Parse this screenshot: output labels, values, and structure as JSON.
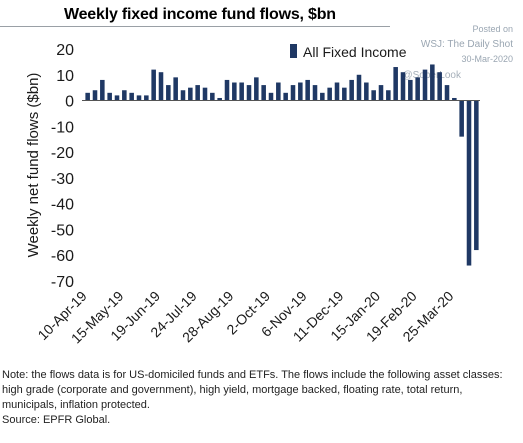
{
  "header": {
    "title": "Weekly fixed income fund flows, $bn"
  },
  "watermark": {
    "posted_on": "Posted on",
    "source_line": "WSJ: The Daily Shot",
    "date": "30-Mar-2020",
    "handle": "@SoberLook"
  },
  "footnote": {
    "note": "Note: the flows data is for US-domiciled funds and ETFs. The flows include the following asset classes: high grade (corporate and government), high yield, mortgage backed, floating rate, total return, municipals, inflation protected.",
    "source": "Source: EPFR Global."
  },
  "colors": {
    "bar": "#1f3864",
    "axis_text": "#1a1a1a"
  },
  "chart_data": {
    "type": "bar",
    "title": "Weekly fixed income fund flows, $bn",
    "xlabel": "",
    "ylabel": "Weekly net fund flows ($bn)",
    "ylim": [
      -70,
      20
    ],
    "yticks": [
      20,
      10,
      0,
      -10,
      -20,
      -30,
      -40,
      -50,
      -60,
      -70
    ],
    "grid": false,
    "legend": "top-right",
    "xtick_labels": [
      "10-Apr-19",
      "15-May-19",
      "19-Jun-19",
      "24-Jul-19",
      "28-Aug-19",
      "2-Oct-19",
      "6-Nov-19",
      "11-Dec-19",
      "15-Jan-20",
      "19-Feb-20",
      "25-Mar-20"
    ],
    "xtick_index": [
      0,
      5,
      10,
      15,
      20,
      25,
      30,
      35,
      40,
      45,
      50
    ],
    "series": [
      {
        "name": "All Fixed Income",
        "values": [
          3,
          4,
          8,
          3,
          2,
          4,
          3,
          2,
          2,
          12,
          11,
          6,
          9,
          4,
          5,
          6,
          5,
          3,
          1,
          8,
          7,
          7,
          6,
          9,
          6,
          3,
          7,
          3,
          6,
          7,
          8,
          6,
          3,
          5,
          7,
          5,
          8,
          10,
          7,
          4,
          6,
          4,
          13,
          11,
          8,
          9,
          12,
          14,
          11,
          6,
          1,
          -14,
          -64,
          -58
        ]
      }
    ]
  }
}
